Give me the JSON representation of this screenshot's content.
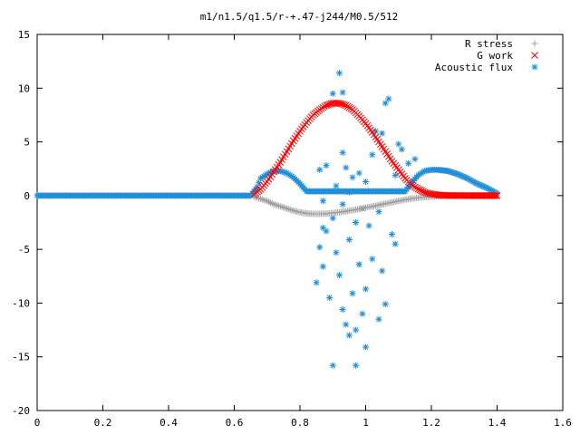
{
  "chart_data": {
    "type": "scatter",
    "title": "m1/n1.5/q1.5/r-+.47-j244/M0.5/512",
    "xlabel": "",
    "ylabel": "",
    "xlim": [
      0,
      1.6
    ],
    "ylim": [
      -20,
      15
    ],
    "xticks": [
      "0",
      "0.2",
      "0.4",
      "0.6",
      "0.8",
      "1",
      "1.2",
      "1.4",
      "1.6"
    ],
    "yticks": [
      "-20",
      "-15",
      "-10",
      "-5",
      "0",
      "5",
      "10",
      "15"
    ],
    "grid": false,
    "legend_position": "top-right",
    "series": [
      {
        "name": "R stress",
        "marker": "plus",
        "color": "#a0a0a0",
        "points": [
          [
            0.66,
            -0.1
          ],
          [
            0.68,
            -0.3
          ],
          [
            0.7,
            -0.5
          ],
          [
            0.72,
            -0.8
          ],
          [
            0.74,
            -1.0
          ],
          [
            0.76,
            -1.2
          ],
          [
            0.78,
            -1.4
          ],
          [
            0.8,
            -1.55
          ],
          [
            0.82,
            -1.65
          ],
          [
            0.84,
            -1.7
          ],
          [
            0.86,
            -1.7
          ],
          [
            0.88,
            -1.68
          ],
          [
            0.9,
            -1.62
          ],
          [
            0.92,
            -1.55
          ],
          [
            0.94,
            -1.45
          ],
          [
            0.96,
            -1.35
          ],
          [
            0.98,
            -1.25
          ],
          [
            1.0,
            -1.12
          ],
          [
            1.02,
            -1.0
          ],
          [
            1.04,
            -0.88
          ],
          [
            1.06,
            -0.75
          ],
          [
            1.08,
            -0.62
          ],
          [
            1.1,
            -0.5
          ],
          [
            1.12,
            -0.38
          ],
          [
            1.14,
            -0.28
          ],
          [
            1.16,
            -0.2
          ],
          [
            1.18,
            -0.14
          ],
          [
            1.2,
            -0.1
          ],
          [
            1.22,
            -0.06
          ],
          [
            1.25,
            -0.04
          ],
          [
            1.28,
            -0.02
          ],
          [
            1.3,
            -0.01
          ],
          [
            1.32,
            0
          ],
          [
            1.35,
            0
          ],
          [
            1.38,
            0
          ],
          [
            1.4,
            0
          ]
        ]
      },
      {
        "name": "G work",
        "marker": "cross",
        "color": "#ff0000",
        "points": [
          [
            0.66,
            0.1
          ],
          [
            0.68,
            0.6
          ],
          [
            0.7,
            1.3
          ],
          [
            0.72,
            2.2
          ],
          [
            0.74,
            3.1
          ],
          [
            0.76,
            4.1
          ],
          [
            0.78,
            5.1
          ],
          [
            0.8,
            6.0
          ],
          [
            0.82,
            6.8
          ],
          [
            0.84,
            7.5
          ],
          [
            0.86,
            8.0
          ],
          [
            0.88,
            8.4
          ],
          [
            0.9,
            8.6
          ],
          [
            0.92,
            8.6
          ],
          [
            0.94,
            8.4
          ],
          [
            0.96,
            8.0
          ],
          [
            0.98,
            7.4
          ],
          [
            1.0,
            6.7
          ],
          [
            1.02,
            5.9
          ],
          [
            1.04,
            5.0
          ],
          [
            1.06,
            4.1
          ],
          [
            1.08,
            3.2
          ],
          [
            1.1,
            2.4
          ],
          [
            1.12,
            1.6
          ],
          [
            1.14,
            1.0
          ],
          [
            1.16,
            0.6
          ],
          [
            1.18,
            0.3
          ],
          [
            1.2,
            0.15
          ],
          [
            1.22,
            0.06
          ],
          [
            1.25,
            0.02
          ],
          [
            1.3,
            0
          ],
          [
            1.35,
            0
          ],
          [
            1.4,
            0
          ]
        ]
      },
      {
        "name": "Acoustic flux",
        "marker": "star",
        "color": "#1f8fd8",
        "curve_points": [
          [
            0,
            0
          ],
          [
            0.1,
            0
          ],
          [
            0.2,
            0
          ],
          [
            0.3,
            0
          ],
          [
            0.4,
            0
          ],
          [
            0.5,
            0
          ],
          [
            0.6,
            0
          ],
          [
            0.65,
            0
          ],
          [
            0.67,
            0.8
          ],
          [
            0.68,
            1.6
          ],
          [
            0.7,
            2.0
          ],
          [
            0.72,
            2.3
          ],
          [
            0.74,
            2.3
          ],
          [
            0.76,
            2.1
          ],
          [
            0.78,
            1.7
          ],
          [
            0.8,
            1.1
          ],
          [
            0.82,
            0.4
          ],
          [
            1.12,
            0.4
          ],
          [
            1.14,
            1.2
          ],
          [
            1.16,
            1.9
          ],
          [
            1.18,
            2.3
          ],
          [
            1.2,
            2.4
          ],
          [
            1.22,
            2.4
          ],
          [
            1.25,
            2.3
          ],
          [
            1.28,
            2.0
          ],
          [
            1.31,
            1.6
          ],
          [
            1.34,
            1.1
          ],
          [
            1.37,
            0.7
          ],
          [
            1.4,
            0.2
          ]
        ],
        "scattered_points": [
          [
            0.92,
            11.4
          ],
          [
            0.9,
            9.5
          ],
          [
            0.93,
            9.6
          ],
          [
            1.07,
            9.0
          ],
          [
            1.06,
            8.6
          ],
          [
            1.03,
            6.0
          ],
          [
            1.05,
            5.8
          ],
          [
            1.1,
            4.8
          ],
          [
            1.11,
            4.3
          ],
          [
            0.93,
            4.0
          ],
          [
            1.02,
            3.8
          ],
          [
            1.13,
            3.0
          ],
          [
            1.15,
            3.4
          ],
          [
            0.88,
            2.8
          ],
          [
            0.86,
            2.4
          ],
          [
            0.98,
            2.1
          ],
          [
            0.96,
            1.7
          ],
          [
            1.0,
            1.3
          ],
          [
            0.91,
            0.9
          ],
          [
            0.95,
            0.3
          ],
          [
            0.87,
            -0.5
          ],
          [
            0.93,
            -0.8
          ],
          [
            0.99,
            -1.2
          ],
          [
            1.04,
            -1.5
          ],
          [
            0.9,
            -2.1
          ],
          [
            0.97,
            -2.5
          ],
          [
            1.01,
            -2.8
          ],
          [
            0.88,
            -3.3
          ],
          [
            1.08,
            -3.6
          ],
          [
            0.95,
            -4.1
          ],
          [
            0.86,
            -4.8
          ],
          [
            0.91,
            -5.3
          ],
          [
            1.02,
            -5.9
          ],
          [
            0.98,
            -6.4
          ],
          [
            0.87,
            -6.6
          ],
          [
            1.05,
            -7.0
          ],
          [
            0.92,
            -7.4
          ],
          [
            0.85,
            -8.1
          ],
          [
            1.0,
            -8.7
          ],
          [
            0.96,
            -9.1
          ],
          [
            0.89,
            -9.5
          ],
          [
            1.06,
            -10.1
          ],
          [
            0.93,
            -10.6
          ],
          [
            0.99,
            -11.0
          ],
          [
            1.04,
            -11.5
          ],
          [
            0.94,
            -12.0
          ],
          [
            0.97,
            -12.5
          ],
          [
            0.95,
            -13.0
          ],
          [
            1.0,
            -14.1
          ],
          [
            0.9,
            -15.8
          ],
          [
            0.97,
            -15.8
          ],
          [
            0.87,
            -3.0
          ],
          [
            1.09,
            -4.5
          ],
          [
            0.94,
            2.6
          ],
          [
            1.09,
            1.9
          ]
        ]
      }
    ]
  }
}
